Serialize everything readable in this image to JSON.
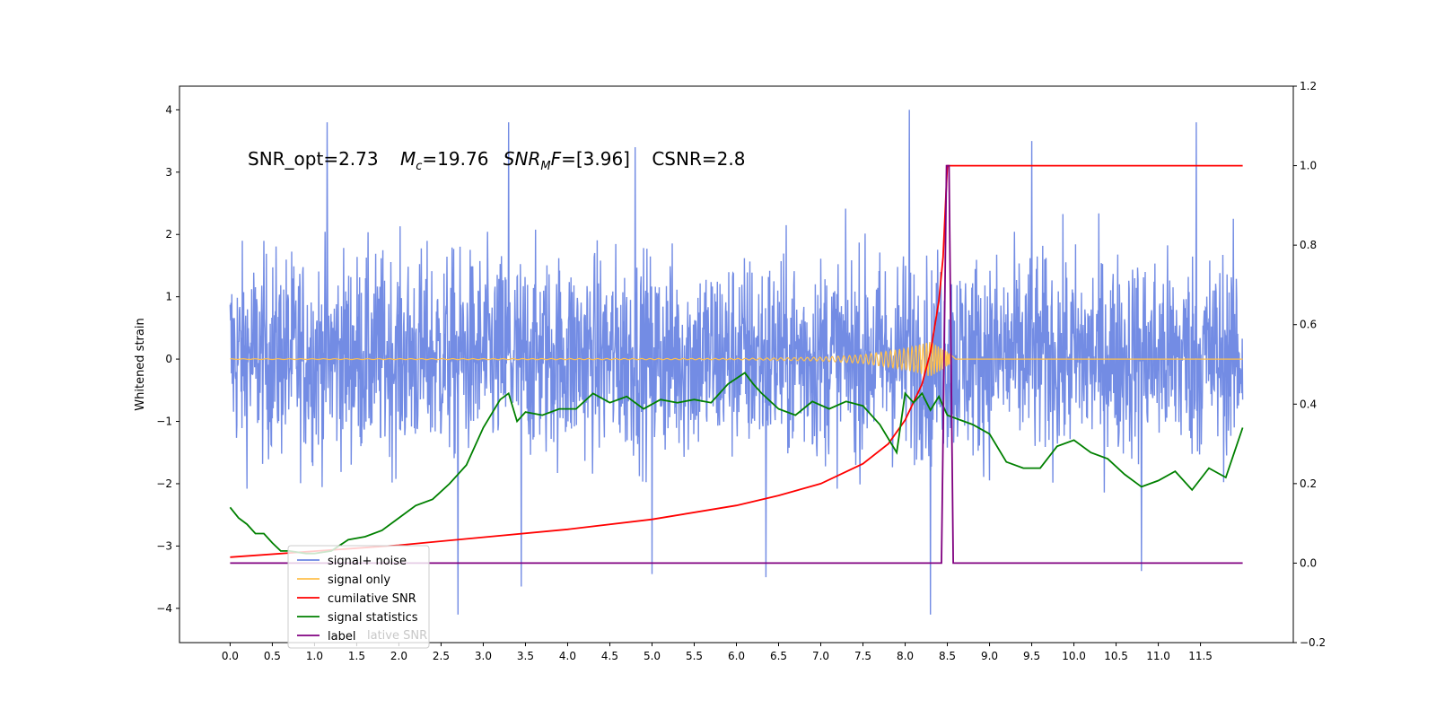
{
  "chart_data": {
    "type": "line",
    "annotation": {
      "snr_opt": "SNR_opt=2.73",
      "mc_symbol": "M",
      "mc_sub": "c",
      "mc_value": "=19.76",
      "snr_mf_symbol": "SNR",
      "snr_mf_sub": "M",
      "snr_mf_f": "F",
      "snr_mf_value": "=[3.96]",
      "csnr": "CSNR=2.8"
    },
    "ylabel_left": "Whitened strain",
    "xlabel": "",
    "xlim": [
      -0.6,
      12.6
    ],
    "ylim_left": [
      -4.55,
      4.38
    ],
    "ylim_right": [
      -0.2,
      1.2
    ],
    "grid": false,
    "legend_position": "bottom-left",
    "x_ticks": [
      "0.0",
      "0.5",
      "1.0",
      "1.5",
      "2.0",
      "2.5",
      "3.0",
      "3.5",
      "4.0",
      "4.5",
      "5.0",
      "5.5",
      "6.0",
      "6.5",
      "7.0",
      "7.5",
      "8.0",
      "8.5",
      "9.0",
      "9.5",
      "10.0",
      "10.5",
      "11.0",
      "11.5"
    ],
    "y_ticks_left": [
      "−4",
      "−3",
      "−2",
      "−1",
      "0",
      "1",
      "2",
      "3",
      "4"
    ],
    "y_ticks_right": [
      "−0.2",
      "0.0",
      "0.2",
      "0.4",
      "0.6",
      "0.8",
      "1.0",
      "1.2"
    ],
    "legend": [
      {
        "name": "signal+ noise",
        "color": "#6b86e3"
      },
      {
        "name": "signal only",
        "color": "#ffc04d"
      },
      {
        "name": "cumilative SNR",
        "color": "#ff0000"
      },
      {
        "name": "signal statistics",
        "color": "#008000"
      },
      {
        "name": "label",
        "color": "#800080"
      }
    ],
    "legend_ghost_text": "lative SNR",
    "series": [
      {
        "name": "signal+ noise",
        "axis": "left",
        "color": "#6b86e3",
        "x_range": [
          0.0,
          12.0
        ],
        "typical_range": [
          -1.8,
          2.0
        ],
        "peak_max": 4.0,
        "peak_min": -4.1,
        "peaks": [
          {
            "x": 1.15,
            "y": 3.8
          },
          {
            "x": 3.3,
            "y": 3.8
          },
          {
            "x": 8.05,
            "y": 4.0
          },
          {
            "x": 11.45,
            "y": 3.8
          },
          {
            "x": 9.5,
            "y": 3.5
          },
          {
            "x": 4.8,
            "y": 3.4
          },
          {
            "x": 2.7,
            "y": -4.1
          },
          {
            "x": 8.3,
            "y": -4.1
          },
          {
            "x": 3.45,
            "y": -3.65
          },
          {
            "x": 5.0,
            "y": -3.45
          },
          {
            "x": 6.35,
            "y": -3.5
          },
          {
            "x": 10.8,
            "y": -3.4
          }
        ]
      },
      {
        "name": "signal only",
        "axis": "left",
        "color": "#ffc04d",
        "x": [
          0.0,
          6.0,
          7.0,
          7.5,
          8.0,
          8.3,
          8.5,
          8.6,
          12.0
        ],
        "envelope": [
          0.005,
          0.01,
          0.03,
          0.07,
          0.17,
          0.28,
          0.12,
          0.0,
          0.0
        ]
      },
      {
        "name": "cumilative SNR",
        "axis": "right",
        "color": "#ff0000",
        "x": [
          0.0,
          1.0,
          2.0,
          3.0,
          4.0,
          5.0,
          6.0,
          6.5,
          7.0,
          7.5,
          7.8,
          8.0,
          8.2,
          8.3,
          8.4,
          8.45,
          8.5,
          12.0
        ],
        "values": [
          0.015,
          0.03,
          0.045,
          0.065,
          0.085,
          0.11,
          0.145,
          0.17,
          0.2,
          0.25,
          0.3,
          0.36,
          0.45,
          0.53,
          0.66,
          0.77,
          1.0,
          1.0
        ]
      },
      {
        "name": "signal statistics",
        "axis": "left",
        "color": "#008000",
        "x": [
          0.0,
          0.1,
          0.2,
          0.3,
          0.4,
          0.5,
          0.6,
          0.7,
          0.8,
          0.9,
          1.0,
          1.2,
          1.4,
          1.6,
          1.8,
          2.0,
          2.2,
          2.4,
          2.6,
          2.8,
          3.0,
          3.2,
          3.3,
          3.4,
          3.5,
          3.7,
          3.9,
          4.1,
          4.3,
          4.5,
          4.7,
          4.9,
          5.1,
          5.3,
          5.5,
          5.7,
          5.9,
          6.1,
          6.2,
          6.3,
          6.5,
          6.7,
          6.9,
          7.1,
          7.3,
          7.5,
          7.7,
          7.9,
          8.0,
          8.1,
          8.2,
          8.3,
          8.4,
          8.5,
          8.6,
          8.8,
          9.0,
          9.2,
          9.4,
          9.6,
          9.8,
          10.0,
          10.2,
          10.4,
          10.6,
          10.8,
          11.0,
          11.2,
          11.4,
          11.6,
          11.8,
          12.0
        ],
        "values": [
          -2.38,
          -2.55,
          -2.65,
          -2.8,
          -2.8,
          -2.95,
          -3.08,
          -3.08,
          -3.1,
          -3.12,
          -3.12,
          -3.08,
          -2.9,
          -2.85,
          -2.75,
          -2.55,
          -2.35,
          -2.25,
          -2.0,
          -1.7,
          -1.1,
          -0.65,
          -0.55,
          -1.0,
          -0.85,
          -0.9,
          -0.8,
          -0.8,
          -0.55,
          -0.7,
          -0.6,
          -0.8,
          -0.65,
          -0.7,
          -0.65,
          -0.7,
          -0.4,
          -0.22,
          -0.4,
          -0.55,
          -0.8,
          -0.9,
          -0.68,
          -0.8,
          -0.68,
          -0.75,
          -1.05,
          -1.5,
          -0.55,
          -0.7,
          -0.55,
          -0.82,
          -0.6,
          -0.9,
          -0.95,
          -1.05,
          -1.2,
          -1.65,
          -1.75,
          -1.75,
          -1.4,
          -1.3,
          -1.5,
          -1.6,
          -1.85,
          -2.05,
          -1.95,
          -1.8,
          -2.1,
          -1.75,
          -1.9,
          -1.1
        ]
      },
      {
        "name": "label",
        "axis": "right",
        "color": "#800080",
        "x": [
          0.0,
          8.43,
          8.49,
          8.52,
          8.57,
          12.0
        ],
        "values": [
          0.0,
          0.0,
          1.0,
          1.0,
          0.0,
          0.0
        ]
      }
    ]
  }
}
